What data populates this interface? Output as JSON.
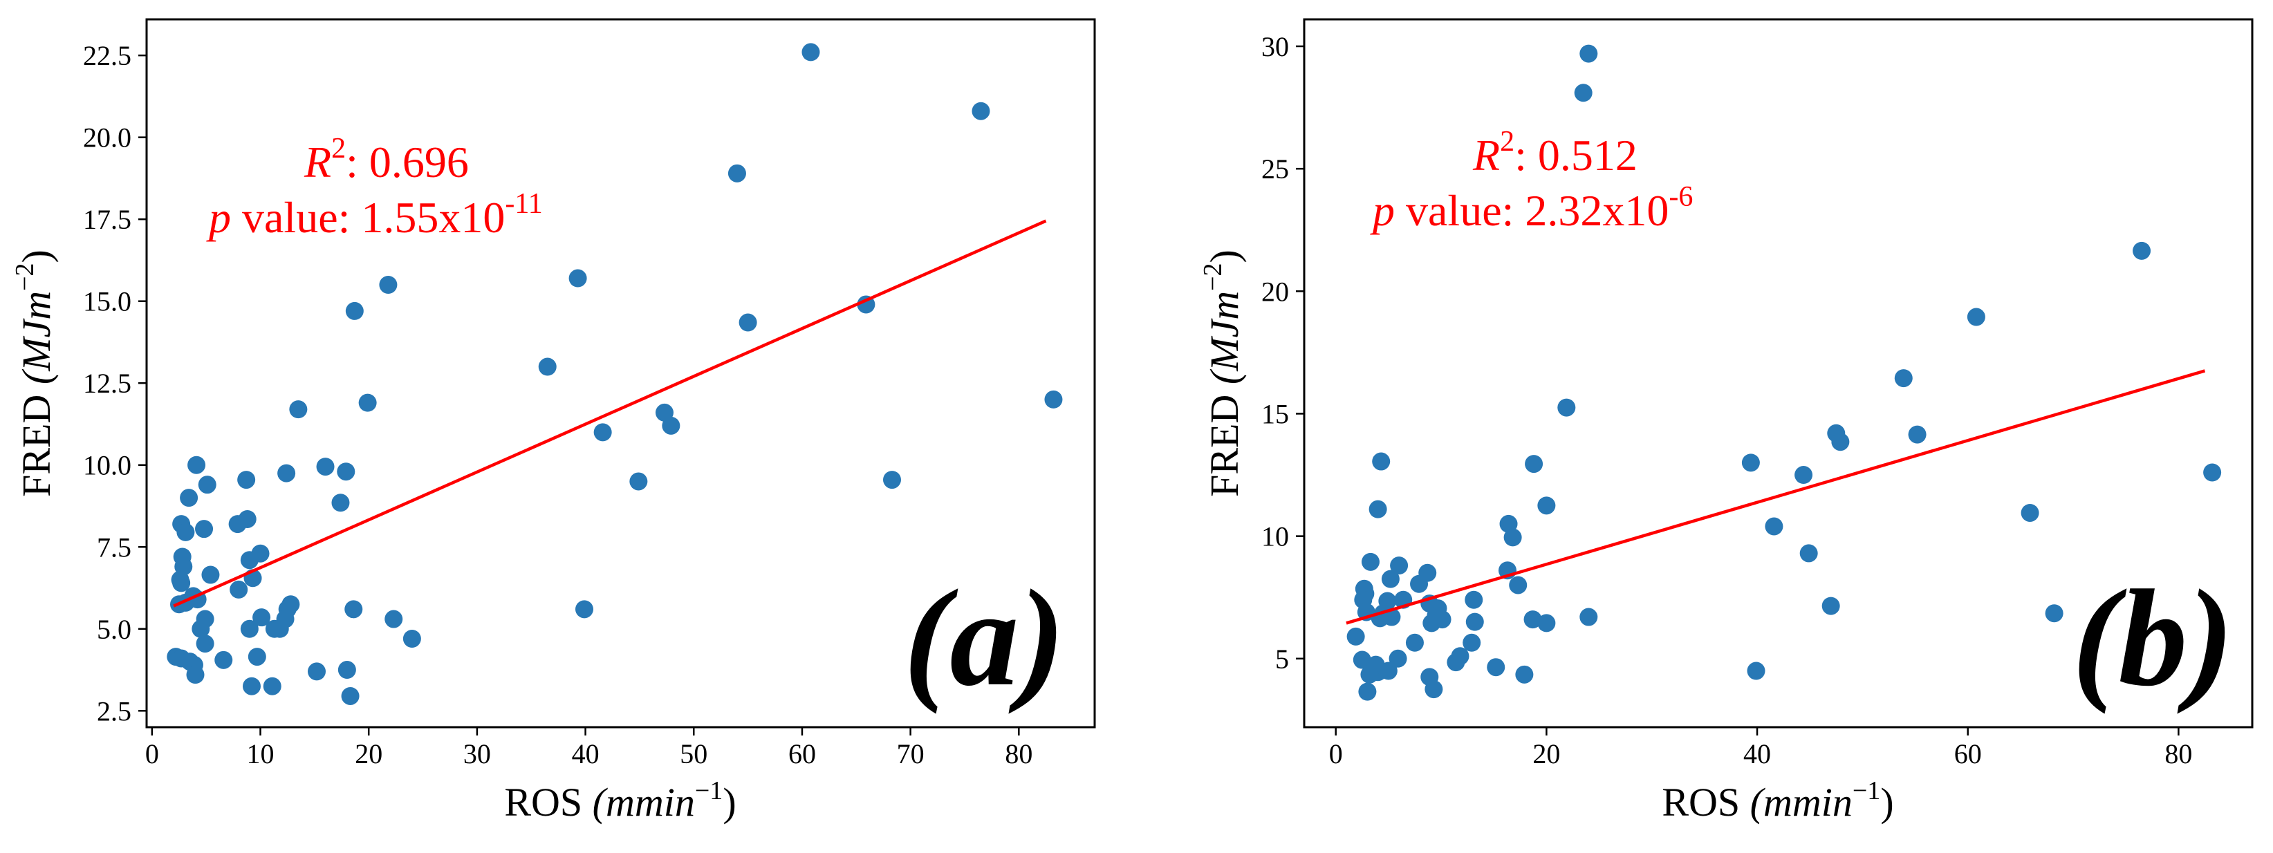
{
  "chart_data": [
    {
      "type": "scatter",
      "panel_label": "(a)",
      "xlabel": "ROS",
      "xlabel_unit": "(mmin",
      "xlabel_exp": "−1",
      "ylabel": "FRED",
      "ylabel_unit": "(MJm",
      "ylabel_exp": "−2",
      "xlim": [
        -0.5,
        87
      ],
      "ylim": [
        2.0,
        23.6
      ],
      "xticks": [
        0,
        10,
        20,
        30,
        40,
        50,
        60,
        70,
        80
      ],
      "yticks": [
        2.5,
        5.0,
        7.5,
        10.0,
        12.5,
        15.0,
        17.5,
        20.0,
        22.5
      ],
      "r2_label": "R",
      "r2_exp": "2",
      "r2_value": ": 0.696",
      "p_label": "p",
      "p_text": " value: 1.55x10",
      "p_exp": "-11",
      "marker_color": "#2878b5",
      "line_color": "#ff0000",
      "fit_line": {
        "x": [
          2,
          82.5
        ],
        "y": [
          5.7,
          17.45
        ]
      },
      "points": [
        [
          60.8,
          22.6
        ],
        [
          76.5,
          20.8
        ],
        [
          54.0,
          18.9
        ],
        [
          39.3,
          15.7
        ],
        [
          65.9,
          14.9
        ],
        [
          55.0,
          14.35
        ],
        [
          21.8,
          15.5
        ],
        [
          18.7,
          14.7
        ],
        [
          36.5,
          13.0
        ],
        [
          83.2,
          12.0
        ],
        [
          19.9,
          11.9
        ],
        [
          13.5,
          11.7
        ],
        [
          47.3,
          11.6
        ],
        [
          47.9,
          11.2
        ],
        [
          41.6,
          11.0
        ],
        [
          4.1,
          10.0
        ],
        [
          16.0,
          9.95
        ],
        [
          17.9,
          9.8
        ],
        [
          12.4,
          9.75
        ],
        [
          8.7,
          9.55
        ],
        [
          68.3,
          9.55
        ],
        [
          44.9,
          9.5
        ],
        [
          5.1,
          9.4
        ],
        [
          3.4,
          9.0
        ],
        [
          17.4,
          8.85
        ],
        [
          8.8,
          8.35
        ],
        [
          7.9,
          8.2
        ],
        [
          2.7,
          8.2
        ],
        [
          3.1,
          7.95
        ],
        [
          4.8,
          8.05
        ],
        [
          10.0,
          7.3
        ],
        [
          2.8,
          7.2
        ],
        [
          9.0,
          7.1
        ],
        [
          2.9,
          6.9
        ],
        [
          5.4,
          6.65
        ],
        [
          9.3,
          6.55
        ],
        [
          2.6,
          6.5
        ],
        [
          2.7,
          6.4
        ],
        [
          8.0,
          6.2
        ],
        [
          3.8,
          6.0
        ],
        [
          4.2,
          5.9
        ],
        [
          3.1,
          5.8
        ],
        [
          2.5,
          5.75
        ],
        [
          12.8,
          5.75
        ],
        [
          12.5,
          5.6
        ],
        [
          18.6,
          5.6
        ],
        [
          39.9,
          5.6
        ],
        [
          22.3,
          5.3
        ],
        [
          4.9,
          5.3
        ],
        [
          10.1,
          5.35
        ],
        [
          12.3,
          5.3
        ],
        [
          11.8,
          5.0
        ],
        [
          11.3,
          5.0
        ],
        [
          9.0,
          5.0
        ],
        [
          4.5,
          5.0
        ],
        [
          24.0,
          4.7
        ],
        [
          4.9,
          4.55
        ],
        [
          2.2,
          4.15
        ],
        [
          2.7,
          4.1
        ],
        [
          3.5,
          4.0
        ],
        [
          6.6,
          4.05
        ],
        [
          9.7,
          4.15
        ],
        [
          3.9,
          3.9
        ],
        [
          15.2,
          3.7
        ],
        [
          18.0,
          3.75
        ],
        [
          4.0,
          3.6
        ],
        [
          9.2,
          3.25
        ],
        [
          11.1,
          3.25
        ],
        [
          18.3,
          2.95
        ]
      ]
    },
    {
      "type": "scatter",
      "panel_label": "(b)",
      "xlabel": "ROS",
      "xlabel_unit": "(mmin",
      "xlabel_exp": "−1",
      "ylabel": "FRED",
      "ylabel_unit": "(MJm",
      "ylabel_exp": "−2",
      "xlim": [
        -3,
        87
      ],
      "ylim": [
        2.2,
        31.1
      ],
      "xticks": [
        0,
        20,
        40,
        60,
        80
      ],
      "yticks": [
        5,
        10,
        15,
        20,
        25,
        30
      ],
      "r2_label": "R",
      "r2_exp": "2",
      "r2_value": ": 0.512",
      "p_label": "p",
      "p_text": " value: 2.32x10",
      "p_exp": "-6",
      "marker_color": "#2878b5",
      "line_color": "#ff0000",
      "fit_line": {
        "x": [
          1,
          82.5
        ],
        "y": [
          6.45,
          16.75
        ]
      },
      "points": [
        [
          24.0,
          29.7
        ],
        [
          23.5,
          28.1
        ],
        [
          76.5,
          21.65
        ],
        [
          60.8,
          18.95
        ],
        [
          53.9,
          16.45
        ],
        [
          21.9,
          15.25
        ],
        [
          47.5,
          14.2
        ],
        [
          55.2,
          14.15
        ],
        [
          47.9,
          13.85
        ],
        [
          4.3,
          13.05
        ],
        [
          39.4,
          13.0
        ],
        [
          18.8,
          12.95
        ],
        [
          83.2,
          12.6
        ],
        [
          44.4,
          12.5
        ],
        [
          20.0,
          11.25
        ],
        [
          4.0,
          11.1
        ],
        [
          65.9,
          10.95
        ],
        [
          16.4,
          10.5
        ],
        [
          41.6,
          10.4
        ],
        [
          16.8,
          9.95
        ],
        [
          44.9,
          9.3
        ],
        [
          3.3,
          8.95
        ],
        [
          6.0,
          8.8
        ],
        [
          16.3,
          8.6
        ],
        [
          8.7,
          8.5
        ],
        [
          5.2,
          8.25
        ],
        [
          7.9,
          8.05
        ],
        [
          17.3,
          8.0
        ],
        [
          2.7,
          7.85
        ],
        [
          2.8,
          7.65
        ],
        [
          2.6,
          7.4
        ],
        [
          4.9,
          7.35
        ],
        [
          6.4,
          7.4
        ],
        [
          13.1,
          7.4
        ],
        [
          8.9,
          7.25
        ],
        [
          9.7,
          7.05
        ],
        [
          47.0,
          7.15
        ],
        [
          2.9,
          6.9
        ],
        [
          4.5,
          6.85
        ],
        [
          9.5,
          6.75
        ],
        [
          68.2,
          6.85
        ],
        [
          24.0,
          6.7
        ],
        [
          18.7,
          6.6
        ],
        [
          10.1,
          6.6
        ],
        [
          13.2,
          6.5
        ],
        [
          20.0,
          6.45
        ],
        [
          4.2,
          6.65
        ],
        [
          9.1,
          6.45
        ],
        [
          5.3,
          6.7
        ],
        [
          7.5,
          5.65
        ],
        [
          12.9,
          5.65
        ],
        [
          1.9,
          5.9
        ],
        [
          11.8,
          5.1
        ],
        [
          11.4,
          4.85
        ],
        [
          15.2,
          4.65
        ],
        [
          2.5,
          4.95
        ],
        [
          3.8,
          4.75
        ],
        [
          4.0,
          4.45
        ],
        [
          5.0,
          4.5
        ],
        [
          3.2,
          4.35
        ],
        [
          17.9,
          4.35
        ],
        [
          39.9,
          4.5
        ],
        [
          8.9,
          4.25
        ],
        [
          3.0,
          3.65
        ],
        [
          9.3,
          3.75
        ],
        [
          5.9,
          5.0
        ]
      ]
    }
  ]
}
